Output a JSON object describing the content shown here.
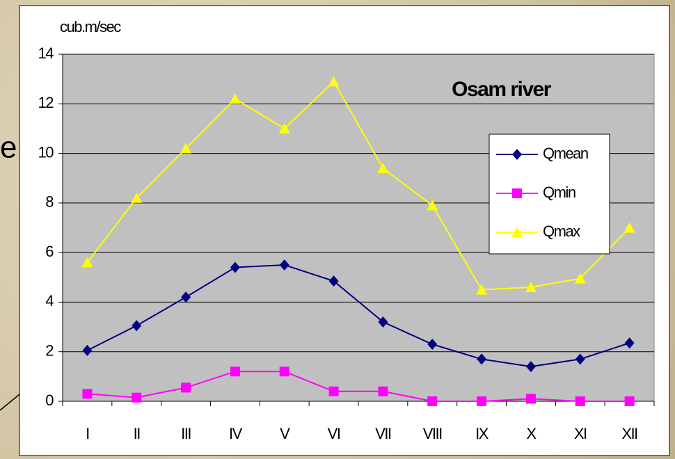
{
  "chart_data": {
    "type": "line",
    "title": "Osam river",
    "y_label": "cub.m/sec",
    "annotation": "e",
    "categories": [
      "I",
      "II",
      "III",
      "IV",
      "V",
      "VI",
      "VII",
      "VIII",
      "IX",
      "X",
      "XI",
      "XII"
    ],
    "series": [
      {
        "name": "Qmean",
        "color": "#000080",
        "marker": "diamond",
        "values": [
          2.05,
          3.05,
          4.2,
          5.4,
          5.5,
          4.85,
          3.2,
          2.3,
          1.7,
          1.4,
          1.7,
          2.35
        ]
      },
      {
        "name": "Qmin",
        "color": "#ff00ff",
        "marker": "square",
        "values": [
          0.3,
          0.15,
          0.55,
          1.2,
          1.2,
          0.4,
          0.4,
          0,
          0,
          0.1,
          0,
          0
        ]
      },
      {
        "name": "Qmax",
        "color": "#ffff00",
        "marker": "triangle",
        "values": [
          5.6,
          8.2,
          10.2,
          12.2,
          11.0,
          12.9,
          9.4,
          7.9,
          4.5,
          4.6,
          4.95,
          7.0
        ]
      }
    ],
    "ylim": [
      0,
      14
    ],
    "yticks": [
      0,
      2,
      4,
      6,
      8,
      10,
      12,
      14
    ],
    "grid": true,
    "legend": "right"
  }
}
